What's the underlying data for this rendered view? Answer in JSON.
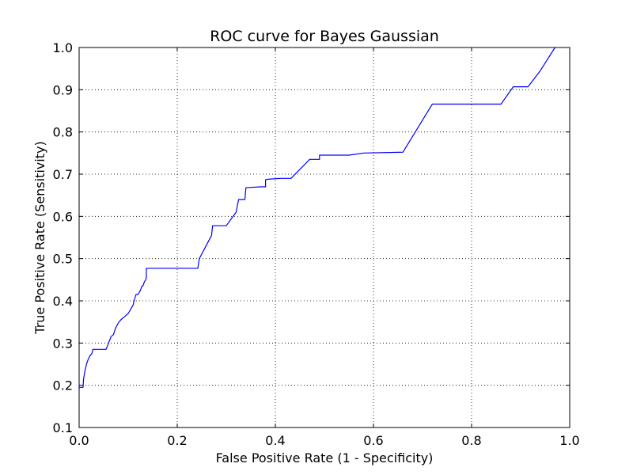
{
  "chart_data": {
    "type": "line",
    "title": "ROC curve for Bayes Gaussian",
    "xlabel": "False Positive Rate (1 - Specificity)",
    "ylabel": "True Positive Rate (Sensitivity)",
    "xlim": [
      0.0,
      1.0
    ],
    "ylim": [
      0.1,
      1.0
    ],
    "xticks": [
      "0.0",
      "0.2",
      "0.4",
      "0.6",
      "0.8",
      "1.0"
    ],
    "yticks": [
      "0.1",
      "0.2",
      "0.3",
      "0.4",
      "0.5",
      "0.6",
      "0.7",
      "0.8",
      "0.9",
      "1.0"
    ],
    "grid": true,
    "series": [
      {
        "color": "#0000ff",
        "x": [
          0.0,
          0.0,
          0.008,
          0.009,
          0.012,
          0.015,
          0.018,
          0.022,
          0.026,
          0.028,
          0.035,
          0.045,
          0.055,
          0.06,
          0.065,
          0.07,
          0.074,
          0.08,
          0.085,
          0.09,
          0.095,
          0.1,
          0.105,
          0.11,
          0.112,
          0.116,
          0.12,
          0.125,
          0.128,
          0.13,
          0.133,
          0.136,
          0.137,
          0.137,
          0.24,
          0.242,
          0.245,
          0.27,
          0.272,
          0.3,
          0.32,
          0.325,
          0.338,
          0.34,
          0.37,
          0.38,
          0.38,
          0.385,
          0.41,
          0.432,
          0.47,
          0.49,
          0.49,
          0.55,
          0.58,
          0.66,
          0.72,
          0.86,
          0.885,
          0.915,
          0.94,
          0.97,
          0.97
        ],
        "y": [
          0.19,
          0.195,
          0.195,
          0.215,
          0.235,
          0.25,
          0.26,
          0.27,
          0.275,
          0.285,
          0.285,
          0.285,
          0.285,
          0.3,
          0.315,
          0.32,
          0.335,
          0.348,
          0.355,
          0.36,
          0.365,
          0.37,
          0.38,
          0.39,
          0.4,
          0.415,
          0.415,
          0.425,
          0.435,
          0.435,
          0.445,
          0.45,
          0.455,
          0.477,
          0.477,
          0.477,
          0.5,
          0.555,
          0.578,
          0.578,
          0.61,
          0.64,
          0.64,
          0.668,
          0.67,
          0.67,
          0.687,
          0.688,
          0.69,
          0.69,
          0.735,
          0.735,
          0.745,
          0.745,
          0.75,
          0.752,
          0.866,
          0.866,
          0.907,
          0.907,
          0.945,
          1.0,
          1.0
        ]
      }
    ]
  }
}
